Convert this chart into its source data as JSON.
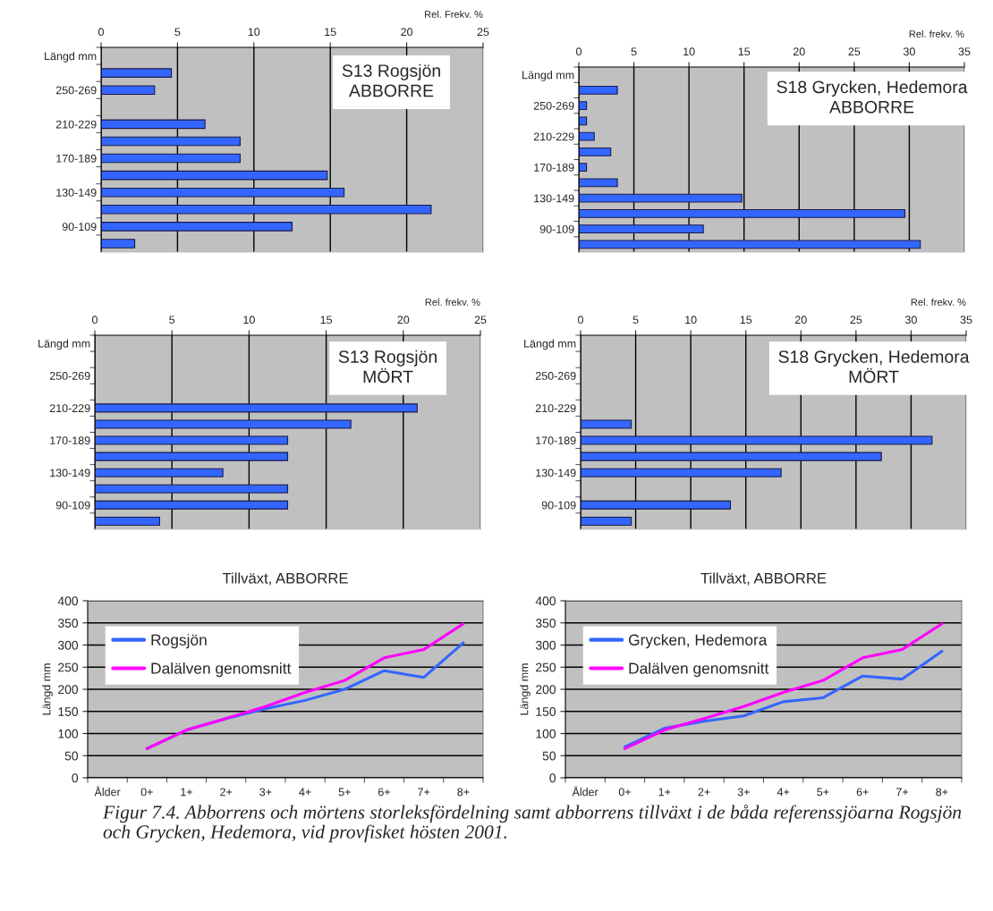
{
  "chart_data": [
    {
      "type": "bar",
      "orientation": "horizontal",
      "title": "S13 Rogsjön\nABBORRE",
      "xlabel": "Rel. Frekv. %",
      "categories": [
        "Längd mm",
        null,
        "250-269",
        null,
        "210-229",
        null,
        "170-189",
        null,
        "130-149",
        null,
        "90-109",
        null
      ],
      "series": [
        {
          "color": "#3366ff",
          "values": [
            null,
            4.6,
            3.5,
            null,
            6.8,
            9.1,
            9.1,
            14.8,
            15.9,
            21.6,
            12.5,
            2.2
          ]
        }
      ],
      "xlim": [
        0,
        25
      ],
      "xticks": [
        0,
        5,
        10,
        15,
        20,
        25
      ],
      "grid": "x"
    },
    {
      "type": "bar",
      "orientation": "horizontal",
      "title": "S18 Grycken, Hedemora\nABBORRE",
      "xlabel": "Rel. frekv. %",
      "categories": [
        "Längd mm",
        null,
        "250-269",
        null,
        "210-229",
        null,
        "170-189",
        null,
        "130-149",
        null,
        "90-109",
        null
      ],
      "series": [
        {
          "color": "#3366ff",
          "values": [
            null,
            3.5,
            0.7,
            0.7,
            1.4,
            2.9,
            0.7,
            3.5,
            14.8,
            29.6,
            11.3,
            31.0
          ]
        }
      ],
      "xlim": [
        0,
        35
      ],
      "xticks": [
        0,
        5,
        10,
        15,
        20,
        25,
        30,
        35
      ],
      "grid": "x"
    },
    {
      "type": "bar",
      "orientation": "horizontal",
      "title": "S13 Rogsjön\nMÖRT",
      "xlabel": "Rel. frekv. %",
      "categories": [
        "Längd mm",
        null,
        "250-269",
        null,
        "210-229",
        null,
        "170-189",
        null,
        "130-149",
        null,
        "90-109",
        null
      ],
      "series": [
        {
          "color": "#3366ff",
          "values": [
            null,
            null,
            null,
            null,
            20.9,
            16.6,
            12.5,
            12.5,
            8.3,
            12.5,
            12.5,
            4.2
          ]
        }
      ],
      "xlim": [
        0,
        25
      ],
      "xticks": [
        0,
        5,
        10,
        15,
        20,
        25
      ],
      "grid": "x"
    },
    {
      "type": "bar",
      "orientation": "horizontal",
      "title": "S18 Grycken, Hedemora\nMÖRT",
      "xlabel": "Rel. frekv. %",
      "categories": [
        "Längd mm",
        null,
        "250-269",
        null,
        "210-229",
        null,
        "170-189",
        null,
        "130-149",
        null,
        "90-109",
        null
      ],
      "series": [
        {
          "color": "#3366ff",
          "values": [
            null,
            null,
            null,
            null,
            null,
            4.6,
            31.9,
            27.3,
            18.2,
            null,
            13.6,
            4.6
          ]
        }
      ],
      "xlim": [
        0,
        35
      ],
      "xticks": [
        0,
        5,
        10,
        15,
        20,
        25,
        30,
        35
      ],
      "grid": "x"
    },
    {
      "type": "line",
      "title": "Tillväxt, ABBORRE",
      "ylabel": "Längd mm",
      "categories": [
        "Ålder",
        "0+",
        "1+",
        "2+",
        "3+",
        "4+",
        "5+",
        "6+",
        "7+",
        "8+"
      ],
      "series": [
        {
          "name": "Rogsjön",
          "color": "#3366ff",
          "values": [
            null,
            66,
            108,
            134,
            156,
            175,
            200,
            242,
            227,
            305
          ]
        },
        {
          "name": "Dalälven genomsnitt",
          "color": "#ff00ff",
          "values": [
            null,
            66,
            108,
            134,
            161,
            193,
            220,
            271,
            290,
            348
          ]
        }
      ],
      "ylim": [
        0,
        400
      ],
      "yticks": [
        0,
        50,
        100,
        150,
        200,
        250,
        300,
        350,
        400
      ],
      "grid": "y",
      "legend": "top left"
    },
    {
      "type": "line",
      "title": "Tillväxt, ABBORRE",
      "ylabel": "Längd mm",
      "categories": [
        "Ålder",
        "0+",
        "1+",
        "2+",
        "3+",
        "4+",
        "5+",
        "6+",
        "7+",
        "8+"
      ],
      "series": [
        {
          "name": "Grycken, Hedemora",
          "color": "#3366ff",
          "values": [
            null,
            70,
            112,
            128,
            140,
            172,
            181,
            230,
            223,
            286
          ]
        },
        {
          "name": "Dalälven genomsnitt",
          "color": "#ff00ff",
          "values": [
            null,
            66,
            108,
            134,
            161,
            193,
            220,
            271,
            290,
            348
          ]
        }
      ],
      "ylim": [
        0,
        400
      ],
      "yticks": [
        0,
        50,
        100,
        150,
        200,
        250,
        300,
        350,
        400
      ],
      "grid": "y",
      "legend": "top left",
      "annotations": [
        "Figur 7.4. Abborrens och mörtens storleksfördelning samt abborrens tillväxt i de båda referenssjöarna Rogsjön och Grycken, Hedemora, vid provfisket hösten 2001."
      ]
    }
  ]
}
